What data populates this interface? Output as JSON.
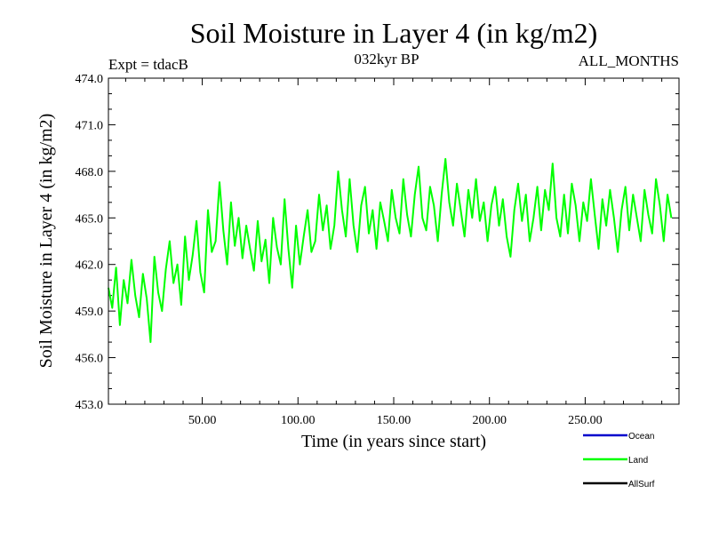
{
  "chart_data": {
    "type": "line",
    "title": "Soil Moisture in Layer 4 (in kg/m2)",
    "subtitle_left": "Expt = tdacB",
    "subtitle_center": "032kyr BP",
    "subtitle_right": "ALL_MONTHS",
    "xlabel": "Time (in years since start)",
    "ylabel": "Soil Moisture in Layer 4 (in kg/m2)",
    "xlim": [
      1,
      299
    ],
    "ylim": [
      453.0,
      474.0
    ],
    "x_ticks": [
      50,
      100,
      150,
      200,
      250
    ],
    "x_tick_labels": [
      "50.00",
      "100.00",
      "150.00",
      "200.00",
      "250.00"
    ],
    "y_ticks": [
      453,
      456,
      459,
      462,
      465,
      468,
      471,
      474
    ],
    "y_tick_labels": [
      "453.0",
      "456.0",
      "459.0",
      "462.0",
      "465.0",
      "468.0",
      "471.0",
      "474.0"
    ],
    "legend": [
      {
        "name": "Ocean",
        "color": "#0000cc"
      },
      {
        "name": "Land",
        "color": "#00ff00"
      },
      {
        "name": "AllSurf",
        "color": "#000000"
      }
    ],
    "series": [
      {
        "name": "Land",
        "color": "#00ff00",
        "x_start": 1,
        "x_step": 2,
        "values": [
          460.5,
          459.2,
          461.8,
          458.1,
          461.0,
          459.5,
          462.3,
          460.0,
          458.6,
          461.4,
          459.8,
          457.0,
          462.5,
          460.2,
          459.0,
          461.7,
          463.5,
          460.8,
          462.0,
          459.4,
          463.8,
          461.0,
          462.6,
          464.8,
          461.5,
          460.2,
          465.5,
          462.8,
          463.5,
          467.3,
          464.2,
          462.0,
          466.0,
          463.2,
          465.0,
          462.4,
          464.5,
          463.0,
          461.6,
          464.8,
          462.2,
          463.6,
          460.8,
          465.0,
          463.1,
          462.0,
          466.2,
          463.0,
          460.5,
          464.5,
          462.0,
          463.8,
          465.5,
          462.8,
          463.5,
          466.5,
          464.2,
          465.8,
          463.0,
          464.5,
          468.0,
          465.5,
          463.8,
          467.5,
          464.5,
          462.8,
          465.8,
          467.0,
          464.0,
          465.5,
          463.0,
          466.0,
          464.8,
          463.5,
          466.8,
          465.0,
          464.0,
          467.5,
          465.2,
          463.8,
          466.5,
          468.3,
          465.0,
          464.2,
          467.0,
          465.8,
          463.5,
          466.5,
          468.8,
          466.0,
          464.5,
          467.2,
          465.5,
          463.8,
          466.8,
          465.0,
          467.5,
          464.8,
          466.0,
          463.5,
          465.8,
          467.0,
          464.5,
          466.2,
          463.8,
          462.5,
          465.5,
          467.2,
          464.8,
          466.5,
          463.5,
          465.0,
          467.0,
          464.2,
          466.8,
          465.5,
          468.5,
          465.0,
          463.8,
          466.5,
          464.0,
          467.2,
          465.8,
          463.5,
          466.0,
          464.8,
          467.5,
          465.2,
          463.0,
          466.2,
          464.5,
          466.8,
          465.0,
          462.8,
          465.5,
          467.0,
          464.2,
          466.5,
          465.0,
          463.5,
          466.8,
          465.2,
          464.0,
          467.5,
          465.8,
          463.5,
          466.5,
          465.0
        ]
      }
    ]
  }
}
